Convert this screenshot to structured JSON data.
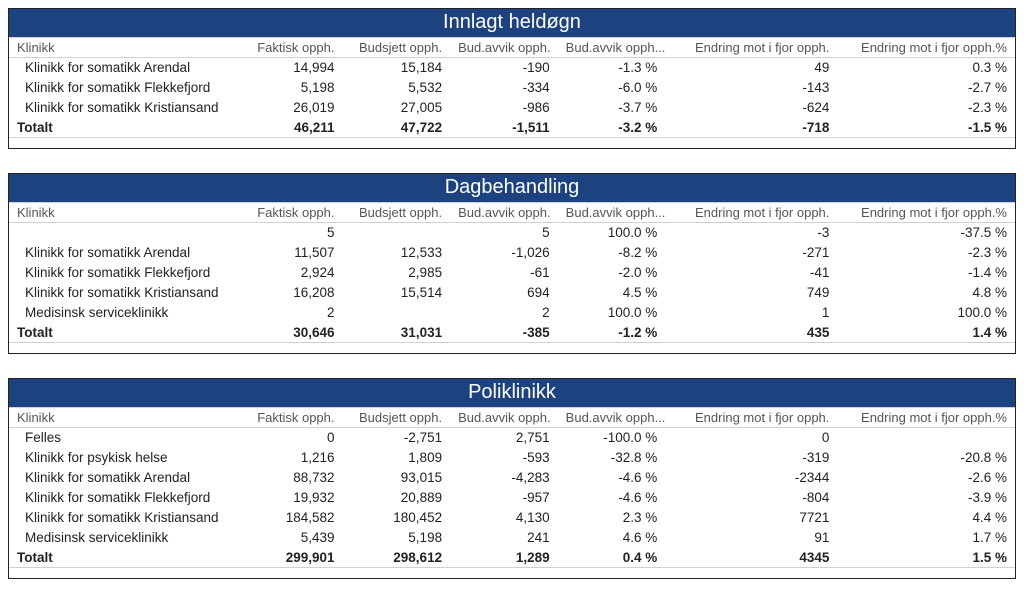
{
  "colors": {
    "header_bg": "#1c4280",
    "header_fg": "#ffffff",
    "border": "#222222",
    "grid": "#d0d0d0",
    "text": "#222222",
    "subtext": "#555555"
  },
  "columns": [
    {
      "key": "name",
      "label": "Klinikk"
    },
    {
      "key": "faktisk",
      "label": "Faktisk opph."
    },
    {
      "key": "budsj",
      "label": "Budsjett opph."
    },
    {
      "key": "avvik",
      "label": "Bud.avvik opph."
    },
    {
      "key": "avvikp",
      "label": "Bud.avvik opph...."
    },
    {
      "key": "endring",
      "label": "Endring mot i fjor opph."
    },
    {
      "key": "endrp",
      "label": "Endring mot i fjor opph.%"
    }
  ],
  "tables": [
    {
      "title": "Innlagt heldøgn",
      "rows": [
        {
          "name": "Klinikk for somatikk Arendal",
          "faktisk": "14,994",
          "budsj": "15,184",
          "avvik": "-190",
          "avvikp": "-1.3 %",
          "endring": "49",
          "endrp": "0.3 %"
        },
        {
          "name": "Klinikk for somatikk Flekkefjord",
          "faktisk": "5,198",
          "budsj": "5,532",
          "avvik": "-334",
          "avvikp": "-6.0 %",
          "endring": "-143",
          "endrp": "-2.7 %"
        },
        {
          "name": "Klinikk for somatikk Kristiansand",
          "faktisk": "26,019",
          "budsj": "27,005",
          "avvik": "-986",
          "avvikp": "-3.7 %",
          "endring": "-624",
          "endrp": "-2.3 %"
        }
      ],
      "total": {
        "name": "Totalt",
        "faktisk": "46,211",
        "budsj": "47,722",
        "avvik": "-1,511",
        "avvikp": "-3.2 %",
        "endring": "-718",
        "endrp": "-1.5 %"
      }
    },
    {
      "title": "Dagbehandling",
      "rows": [
        {
          "name": "",
          "faktisk": "5",
          "budsj": "",
          "avvik": "5",
          "avvikp": "100.0 %",
          "endring": "-3",
          "endrp": "-37.5 %"
        },
        {
          "name": "Klinikk for somatikk Arendal",
          "faktisk": "11,507",
          "budsj": "12,533",
          "avvik": "-1,026",
          "avvikp": "-8.2 %",
          "endring": "-271",
          "endrp": "-2.3 %"
        },
        {
          "name": "Klinikk for somatikk Flekkefjord",
          "faktisk": "2,924",
          "budsj": "2,985",
          "avvik": "-61",
          "avvikp": "-2.0 %",
          "endring": "-41",
          "endrp": "-1.4 %"
        },
        {
          "name": "Klinikk for somatikk Kristiansand",
          "faktisk": "16,208",
          "budsj": "15,514",
          "avvik": "694",
          "avvikp": "4.5 %",
          "endring": "749",
          "endrp": "4.8 %"
        },
        {
          "name": "Medisinsk serviceklinikk",
          "faktisk": "2",
          "budsj": "",
          "avvik": "2",
          "avvikp": "100.0 %",
          "endring": "1",
          "endrp": "100.0 %"
        }
      ],
      "total": {
        "name": "Totalt",
        "faktisk": "30,646",
        "budsj": "31,031",
        "avvik": "-385",
        "avvikp": "-1.2 %",
        "endring": "435",
        "endrp": "1.4 %"
      }
    },
    {
      "title": "Poliklinikk",
      "rows": [
        {
          "name": "Felles",
          "faktisk": "0",
          "budsj": "-2,751",
          "avvik": "2,751",
          "avvikp": "-100.0 %",
          "endring": "0",
          "endrp": ""
        },
        {
          "name": "Klinikk for psykisk helse",
          "faktisk": "1,216",
          "budsj": "1,809",
          "avvik": "-593",
          "avvikp": "-32.8 %",
          "endring": "-319",
          "endrp": "-20.8 %"
        },
        {
          "name": "Klinikk for somatikk Arendal",
          "faktisk": "88,732",
          "budsj": "93,015",
          "avvik": "-4,283",
          "avvikp": "-4.6 %",
          "endring": "-2344",
          "endrp": "-2.6 %"
        },
        {
          "name": "Klinikk for somatikk Flekkefjord",
          "faktisk": "19,932",
          "budsj": "20,889",
          "avvik": "-957",
          "avvikp": "-4.6 %",
          "endring": "-804",
          "endrp": "-3.9 %"
        },
        {
          "name": "Klinikk for somatikk Kristiansand",
          "faktisk": "184,582",
          "budsj": "180,452",
          "avvik": "4,130",
          "avvikp": "2.3 %",
          "endring": "7721",
          "endrp": "4.4 %"
        },
        {
          "name": "Medisinsk serviceklinikk",
          "faktisk": "5,439",
          "budsj": "5,198",
          "avvik": "241",
          "avvikp": "4.6 %",
          "endring": "91",
          "endrp": "1.7 %"
        }
      ],
      "total": {
        "name": "Totalt",
        "faktisk": "299,901",
        "budsj": "298,612",
        "avvik": "1,289",
        "avvikp": "0.4 %",
        "endring": "4345",
        "endrp": "1.5 %"
      }
    }
  ]
}
